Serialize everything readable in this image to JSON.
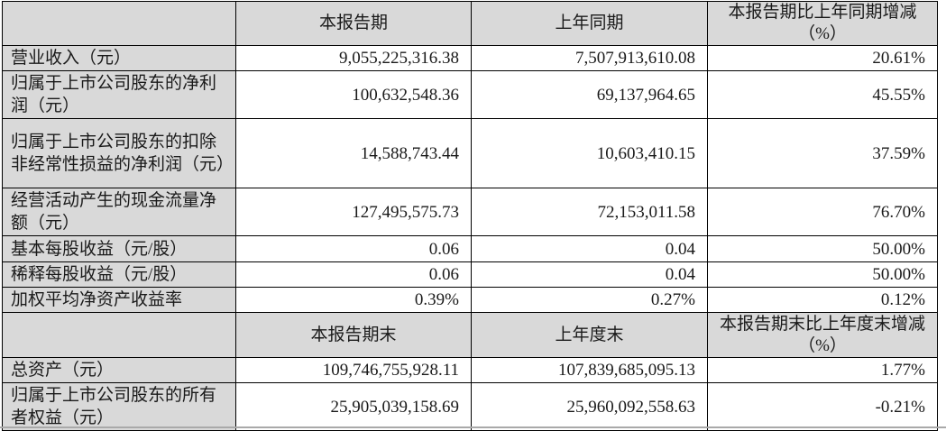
{
  "colors": {
    "header_bg": "#d9d9d9",
    "border": "#000000"
  },
  "table": {
    "period_header": {
      "c1": "",
      "c2": "本报告期",
      "c3": "上年同期",
      "c4_line1": "本报告期比上年同期增减",
      "c4_line2": "（%）"
    },
    "rows_period": [
      {
        "label": "营业收入（元）",
        "current": "9,055,225,316.38",
        "prior": "7,507,913,610.08",
        "change": "20.61%"
      },
      {
        "label": "归属于上市公司股东的净利润（元）",
        "current": "100,632,548.36",
        "prior": "69,137,964.65",
        "change": "45.55%"
      },
      {
        "label": "归属于上市公司股东的扣除非经常性损益的净利润（元）",
        "current": "14,588,743.44",
        "prior": "10,603,410.15",
        "change": "37.59%"
      },
      {
        "label": "经营活动产生的现金流量净额（元）",
        "current": "127,495,575.73",
        "prior": "72,153,011.58",
        "change": "76.70%"
      },
      {
        "label": "基本每股收益（元/股）",
        "current": "0.06",
        "prior": "0.04",
        "change": "50.00%"
      },
      {
        "label": "稀释每股收益（元/股）",
        "current": "0.06",
        "prior": "0.04",
        "change": "50.00%"
      },
      {
        "label": "加权平均净资产收益率",
        "current": "0.39%",
        "prior": "0.27%",
        "change": "0.12%"
      }
    ],
    "period_end_header": {
      "c1": "",
      "c2": "本报告期末",
      "c3": "上年度末",
      "c4_line1": "本报告期末比上年度末增减",
      "c4_line2": "（%）"
    },
    "rows_period_end": [
      {
        "label": "总资产（元）",
        "current": "109,746,755,928.11",
        "prior": "107,839,685,095.13",
        "change": "1.77%"
      },
      {
        "label": "归属于上市公司股东的所有者权益（元）",
        "current": "25,905,039,158.69",
        "prior": "25,960,092,558.63",
        "change": "-0.21%"
      }
    ]
  }
}
